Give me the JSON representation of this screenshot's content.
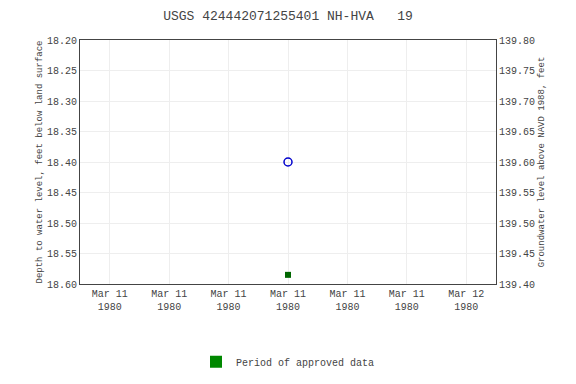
{
  "chart_data": {
    "type": "scatter",
    "title": "USGS 424442071255401 NH-HVA   19",
    "ylabel": "Depth to water level, feet below land surface",
    "y2label": "Groundwater level above NAVD 1988, feet",
    "categories": [
      "Mar 11\n1980",
      "Mar 11\n1980",
      "Mar 11\n1980",
      "Mar 11\n1980",
      "Mar 11\n1980",
      "Mar 11\n1980",
      "Mar 12\n1980"
    ],
    "ylim": [
      18.6,
      18.2
    ],
    "yticks": [
      {
        "value": 18.2,
        "label": "18.20"
      },
      18.25,
      {
        "value": 18.3,
        "label": "18.30"
      },
      18.35,
      {
        "value": 18.4,
        "label": "18.40"
      },
      18.45,
      {
        "value": 18.5,
        "label": "18.50"
      },
      18.55,
      {
        "value": 18.6,
        "label": "18.60"
      }
    ],
    "y2lim": [
      139.4,
      139.8
    ],
    "y2ticks": [
      {
        "value": 139.8,
        "label": "139.80"
      },
      139.75,
      {
        "value": 139.7,
        "label": "139.70"
      },
      139.65,
      {
        "value": 139.6,
        "label": "139.60"
      },
      139.55,
      {
        "value": 139.5,
        "label": "139.50"
      },
      139.45,
      {
        "value": 139.4,
        "label": "139.40"
      }
    ],
    "grid": true,
    "legend": "bottom",
    "series": [
      {
        "type": "scatter",
        "marker": "circle-open",
        "color": "#0000cc",
        "values": [
          null,
          null,
          null,
          18.4,
          null,
          null,
          null
        ]
      },
      {
        "type": "scatter",
        "marker": "square",
        "color": "#006600",
        "values": [
          null,
          null,
          null,
          18.585,
          null,
          null,
          null
        ]
      },
      {
        "type": "bar",
        "name": "Period of approved data",
        "color": "#008800",
        "values": [
          null,
          null,
          null,
          null,
          null,
          null,
          null
        ]
      }
    ]
  }
}
